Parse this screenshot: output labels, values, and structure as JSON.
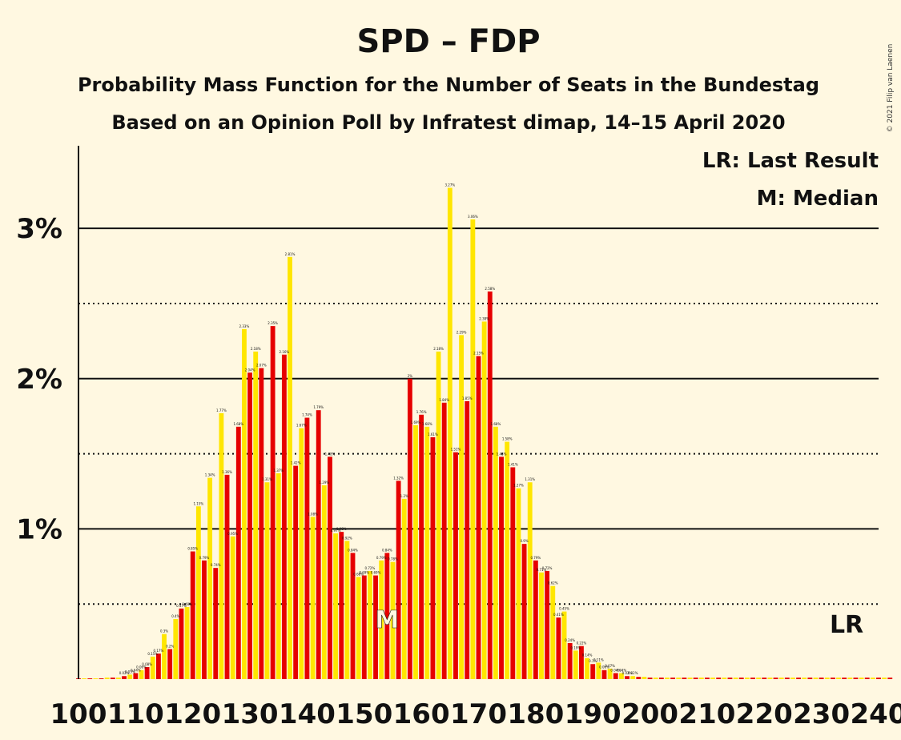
{
  "title": "SPD – FDP",
  "subtitle1": "Probability Mass Function for the Number of Seats in the Bundestag",
  "subtitle2": "Based on an Opinion Poll by Infratest dimap, 14–15 April 2020",
  "copyright": "© 2021 Filip van Laenen",
  "legend": {
    "lr": "LR: Last Result",
    "median": "M: Median"
  },
  "markers": {
    "lr_label": "LR",
    "lr_seat": 233,
    "median_label": "M",
    "median_seat": 154
  },
  "colors": {
    "red": "#e60000",
    "yellow": "#ffe600",
    "background": "#fff8e1"
  },
  "chart_data": {
    "type": "bar",
    "xlabel": "",
    "ylabel": "",
    "xlim": [
      100,
      240
    ],
    "ylim": [
      0,
      3.55
    ],
    "x_ticks": [
      "100",
      "110",
      "120",
      "130",
      "140",
      "150",
      "160",
      "170",
      "180",
      "190",
      "200",
      "210",
      "220",
      "230",
      "240"
    ],
    "y_ticks": [
      {
        "value": 1,
        "label": "1%"
      },
      {
        "value": 2,
        "label": "2%"
      },
      {
        "value": 3,
        "label": "3%"
      }
    ],
    "minor_gridlines": [
      0.5,
      1.5,
      2.5
    ],
    "start_seat": 100,
    "values": [
      0.005,
      0.005,
      0.005,
      0.005,
      0.005,
      0.01,
      0.01,
      0.01,
      0.02,
      0.03,
      0.04,
      0.06,
      0.08,
      0.15,
      0.17,
      0.3,
      0.2,
      0.4,
      0.47,
      0.48,
      0.85,
      1.15,
      0.79,
      1.34,
      0.74,
      1.77,
      1.36,
      0.95,
      1.68,
      2.33,
      2.04,
      2.18,
      2.07,
      1.31,
      2.35,
      1.37,
      2.16,
      2.81,
      1.42,
      1.67,
      1.74,
      1.08,
      1.79,
      1.29,
      1.48,
      0.97,
      0.98,
      0.92,
      0.84,
      0.68,
      0.69,
      0.72,
      0.69,
      0.79,
      0.84,
      0.78,
      1.32,
      1.2,
      2.0,
      1.69,
      1.76,
      1.68,
      1.61,
      2.18,
      1.84,
      3.27,
      1.51,
      2.29,
      1.85,
      3.06,
      2.15,
      2.38,
      2.58,
      1.68,
      1.48,
      1.58,
      1.41,
      1.27,
      0.9,
      1.31,
      0.79,
      0.71,
      0.72,
      0.62,
      0.41,
      0.45,
      0.24,
      0.19,
      0.22,
      0.14,
      0.1,
      0.11,
      0.06,
      0.07,
      0.04,
      0.04,
      0.02,
      0.02,
      0.015,
      0.015,
      0.01,
      0.01,
      0.01,
      0.01,
      0.01,
      0.01,
      0.01,
      0.01,
      0.01,
      0.01,
      0.01,
      0.01,
      0.01,
      0.01,
      0.01,
      0.01,
      0.01,
      0.01,
      0.01,
      0.01,
      0.01,
      0.01,
      0.01,
      0.01,
      0.01,
      0.01,
      0.01,
      0.01,
      0.01,
      0.01,
      0.01,
      0.01,
      0.01,
      0.01,
      0.01,
      0.01,
      0.01,
      0.01,
      0.01,
      0.01,
      0.01,
      0.01,
      0.01
    ]
  }
}
